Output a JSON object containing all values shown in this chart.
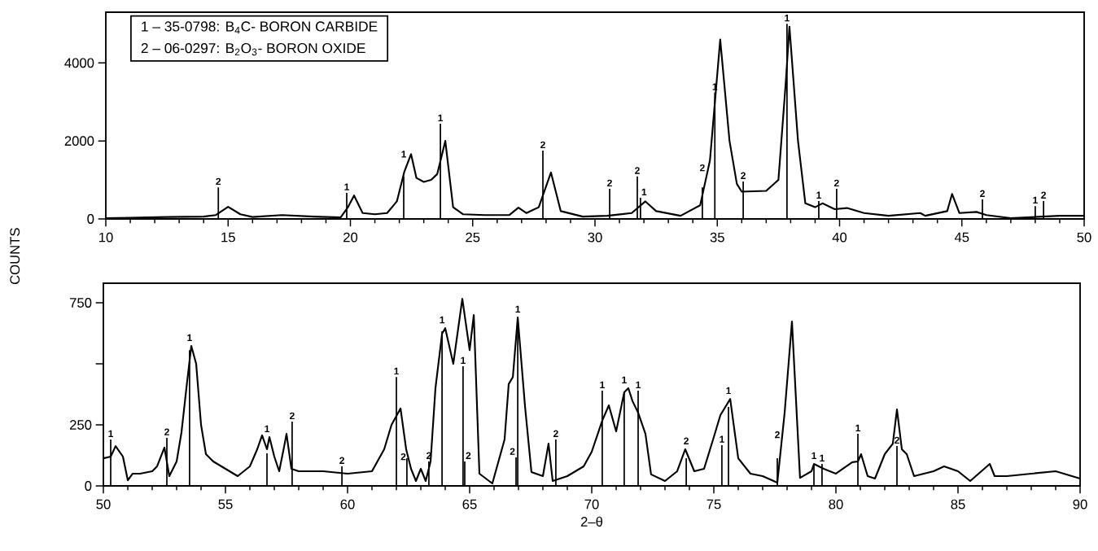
{
  "chart_data": [
    {
      "type": "line",
      "ylabel": "COUNTS",
      "xlim": [
        10,
        50
      ],
      "ylim": [
        0,
        5300
      ],
      "xticks": [
        10,
        15,
        20,
        25,
        30,
        35,
        40,
        45,
        50
      ],
      "yticks": [
        0,
        2000,
        4000
      ],
      "series": [
        {
          "color": "#000000",
          "x": [
            10,
            11,
            12.5,
            14,
            14.5,
            15.0,
            15.5,
            16,
            17.2,
            18.5,
            19.6,
            19.9,
            20.15,
            20.5,
            21,
            21.5,
            21.9,
            22.2,
            22.48,
            22.7,
            23.0,
            23.3,
            23.55,
            23.88,
            24.2,
            24.6,
            25.5,
            26.5,
            26.87,
            27.2,
            27.7,
            28.2,
            28.6,
            29.5,
            30.5,
            31.5,
            32.06,
            32.5,
            33.5,
            34.3,
            34.7,
            35.12,
            35.5,
            35.8,
            36.0,
            37.0,
            37.5,
            37.8,
            37.95,
            38.3,
            38.6,
            39.0,
            39.3,
            39.8,
            40.3,
            41,
            42,
            43.3,
            43.5,
            44.4,
            44.6,
            44.9,
            45.6,
            46,
            47,
            48,
            49,
            50
          ],
          "values": [
            20,
            30,
            50,
            60,
            100,
            310,
            120,
            50,
            100,
            60,
            40,
            300,
            600,
            150,
            120,
            150,
            450,
            1200,
            1660,
            1050,
            950,
            1000,
            1150,
            2000,
            300,
            120,
            100,
            100,
            290,
            150,
            300,
            1190,
            200,
            60,
            80,
            150,
            450,
            200,
            80,
            350,
            1500,
            4600,
            2000,
            900,
            700,
            720,
            1000,
            3500,
            4930,
            2000,
            400,
            300,
            400,
            250,
            280,
            150,
            80,
            150,
            80,
            200,
            640,
            150,
            180,
            100,
            20,
            50,
            80,
            80
          ]
        },
        {
          "type": "bar",
          "color": "#000000",
          "x": [
            14.6,
            19.85,
            22.18,
            23.68,
            27.87,
            30.6,
            31.73,
            31.86,
            34.39,
            34.9,
            36.06,
            37.85,
            39.15,
            39.88,
            45.84,
            48.0,
            48.34
          ],
          "values": [
            810,
            670,
            1090,
            2440,
            1750,
            770,
            1090,
            540,
            810,
            3240,
            960,
            5000,
            460,
            770,
            500,
            330,
            460
          ]
        }
      ],
      "annotations": [
        "1 – 35-0798: B$_{4}$C- BORON CARBIDE",
        "2 – 06-0297: B$_{2}$O$_{3}$- BORON OXIDE",
        {
          "text": "2",
          "x": 14.6,
          "y": 810
        },
        {
          "text": "1",
          "x": 19.85,
          "y": 670
        },
        {
          "text": "1",
          "x": 22.18,
          "y": 1090
        },
        {
          "text": "1",
          "x": 23.68,
          "y": 2440
        },
        {
          "text": "2",
          "x": 27.87,
          "y": 1750
        },
        {
          "text": "2",
          "x": 30.6,
          "y": 770
        },
        {
          "text": "2",
          "x": 31.73,
          "y": 1090
        },
        {
          "text": "1",
          "x": 31.86,
          "y": 540
        },
        {
          "text": "2",
          "x": 34.39,
          "y": 810
        },
        {
          "text": "1",
          "x": 34.9,
          "y": 3240
        },
        {
          "text": "2",
          "x": 36.06,
          "y": 960
        },
        {
          "text": "1",
          "x": 37.85,
          "y": 5000
        },
        {
          "text": "1",
          "x": 39.15,
          "y": 460
        },
        {
          "text": "2",
          "x": 39.88,
          "y": 770
        },
        {
          "text": "2",
          "x": 45.84,
          "y": 500
        },
        {
          "text": "1",
          "x": 48.0,
          "y": 330
        },
        {
          "text": "2",
          "x": 48.34,
          "y": 460
        }
      ]
    },
    {
      "type": "line",
      "xlabel": "2–θ",
      "xlim": [
        50,
        90
      ],
      "ylim": [
        0,
        830
      ],
      "xticks": [
        50,
        55,
        60,
        65,
        70,
        75,
        80,
        85,
        90
      ],
      "yticks": [
        0,
        250,
        {
          "value": 500,
          "label": null
        },
        750
      ],
      "series": [
        {
          "color": "#000000",
          "x": [
            50,
            50.3,
            50.5,
            50.8,
            51,
            51.2,
            51.5,
            52,
            52.2,
            52.5,
            52.7,
            53,
            53.2,
            53.4,
            53.6,
            53.8,
            54,
            54.2,
            54.5,
            55,
            55.5,
            56,
            56.3,
            56.5,
            56.7,
            56.8,
            57,
            57.2,
            57.4,
            57.5,
            57.7,
            58,
            59,
            60,
            61,
            61.5,
            61.8,
            62.17,
            62.4,
            62.6,
            62.8,
            63,
            63.2,
            63.4,
            63.6,
            63.87,
            64.0,
            64.33,
            64.7,
            65.0,
            65.17,
            65.4,
            65.93,
            66.43,
            66.6,
            66.77,
            66.97,
            67.27,
            67.53,
            68.0,
            68.23,
            68.4,
            69,
            69.67,
            70.0,
            70.43,
            70.7,
            71.0,
            71.33,
            71.5,
            71.67,
            71.9,
            72.2,
            72.43,
            73,
            73.5,
            73.83,
            74.2,
            74.6,
            75.0,
            75.27,
            75.67,
            76.0,
            76.5,
            77,
            77.6,
            77.9,
            78.2,
            78.53,
            79,
            79.1,
            79.5,
            80,
            80.67,
            80.9,
            81.03,
            81.3,
            81.6,
            82,
            82.33,
            82.5,
            82.7,
            82.9,
            83.2,
            84,
            84.43,
            85,
            85.5,
            86.3,
            86.5,
            87,
            88,
            89,
            90
          ],
          "values": [
            113,
            120,
            163,
            120,
            23,
            50,
            50,
            60,
            80,
            157,
            40,
            100,
            220,
            400,
            573,
            500,
            250,
            130,
            100,
            70,
            40,
            80,
            150,
            207,
            150,
            200,
            120,
            60,
            160,
            213,
            70,
            60,
            60,
            50,
            60,
            150,
            250,
            317,
            150,
            70,
            20,
            70,
            20,
            100,
            400,
            623,
            646,
            500,
            766,
            556,
            700,
            50,
            10,
            190,
            417,
            446,
            690,
            323,
            57,
            40,
            173,
            20,
            40,
            80,
            140,
            267,
            330,
            223,
            383,
            400,
            347,
            300,
            213,
            47,
            20,
            60,
            150,
            60,
            70,
            200,
            290,
            356,
            113,
            50,
            40,
            13,
            300,
            673,
            33,
            60,
            90,
            70,
            50,
            97,
            100,
            130,
            40,
            30,
            130,
            173,
            313,
            150,
            130,
            40,
            60,
            80,
            60,
            20,
            90,
            40,
            40,
            50,
            60,
            30
          ]
        },
        {
          "type": "bar",
          "color": "#000000",
          "x": [
            50.3,
            52.6,
            53.53,
            56.7,
            57.73,
            59.77,
            62.0,
            62.43,
            63.33,
            63.87,
            64.73,
            64.8,
            66.9,
            66.97,
            68.53,
            70.43,
            71.33,
            71.9,
            73.87,
            75.33,
            75.6,
            77.6,
            79.1,
            79.43,
            80.9,
            82.5
          ],
          "values": [
            190,
            197,
            556,
            133,
            263,
            80,
            446,
            113,
            100,
            633,
            490,
            100,
            117,
            646,
            190,
            390,
            383,
            390,
            113,
            167,
            323,
            113,
            90,
            90,
            213,
            163
          ]
        }
      ],
      "annotations": [
        {
          "text": "1",
          "x": 50.3,
          "y": 190
        },
        {
          "text": "2",
          "x": 52.6,
          "y": 197
        },
        {
          "text": "1",
          "x": 53.53,
          "y": 556
        },
        {
          "text": "1",
          "x": 56.7,
          "y": 133
        },
        {
          "text": "2",
          "x": 57.73,
          "y": 263
        },
        {
          "text": "2",
          "x": 59.77,
          "y": 80
        },
        {
          "text": "1",
          "x": 62.0,
          "y": 446
        },
        {
          "text": "2",
          "x": 62.43,
          "y": 113
        },
        {
          "text": "2",
          "x": 63.33,
          "y": 100
        },
        {
          "text": "1",
          "x": 63.87,
          "y": 633
        },
        {
          "text": "1",
          "x": 64.73,
          "y": 490
        },
        {
          "text": "2",
          "x": 64.8,
          "y": 100
        },
        {
          "text": "2",
          "x": 66.9,
          "y": 117
        },
        {
          "text": "1",
          "x": 66.97,
          "y": 646
        },
        {
          "text": "2",
          "x": 68.53,
          "y": 190
        },
        {
          "text": "1",
          "x": 70.43,
          "y": 390
        },
        {
          "text": "1",
          "x": 71.33,
          "y": 383
        },
        {
          "text": "1",
          "x": 71.9,
          "y": 390
        },
        {
          "text": "2",
          "x": 73.87,
          "y": 113
        },
        {
          "text": "1",
          "x": 75.33,
          "y": 167
        },
        {
          "text": "1",
          "x": 75.6,
          "y": 323
        },
        {
          "text": "2",
          "x": 77.6,
          "y": 113
        },
        {
          "text": "1",
          "x": 79.1,
          "y": 90
        },
        {
          "text": "1",
          "x": 79.43,
          "y": 90
        },
        {
          "text": "1",
          "x": 80.9,
          "y": 213
        },
        {
          "text": "2",
          "x": 82.5,
          "y": 163
        }
      ]
    }
  ]
}
